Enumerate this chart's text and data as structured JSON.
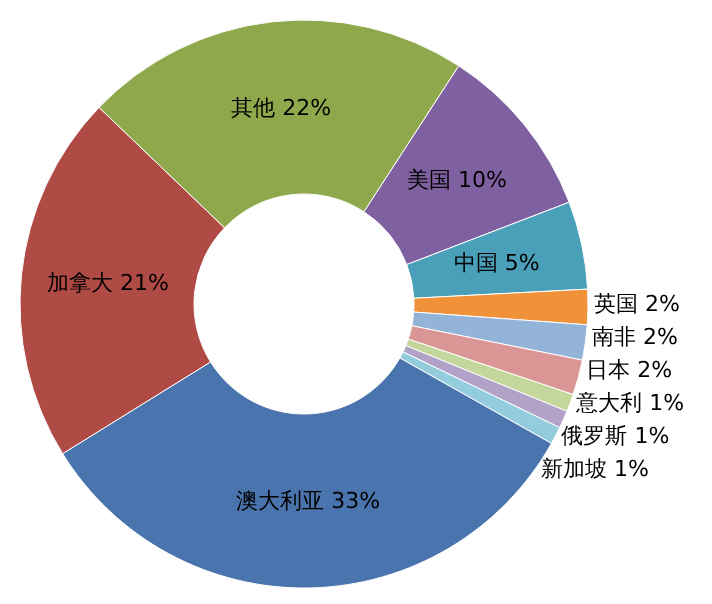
{
  "chart_data": {
    "type": "donut",
    "categories": [
      "美国",
      "中国",
      "英国",
      "南非",
      "日本",
      "意大利",
      "俄罗斯",
      "新加坡",
      "澳大利亚",
      "加拿大",
      "其他"
    ],
    "values": [
      10,
      5,
      2,
      2,
      2,
      1,
      1,
      1,
      33,
      21,
      22
    ],
    "value_labels": [
      "10%",
      "5%",
      "2%",
      "2%",
      "2%",
      "1%",
      "1%",
      "1%",
      "33%",
      "21%",
      "22%"
    ],
    "colors": [
      "#7f60a0",
      "#4aa0b8",
      "#f0923a",
      "#94b3d8",
      "#d99694",
      "#c3d69b",
      "#b3a2c7",
      "#93cddd",
      "#4a74ae",
      "#b04a45",
      "#8fa84c"
    ]
  }
}
